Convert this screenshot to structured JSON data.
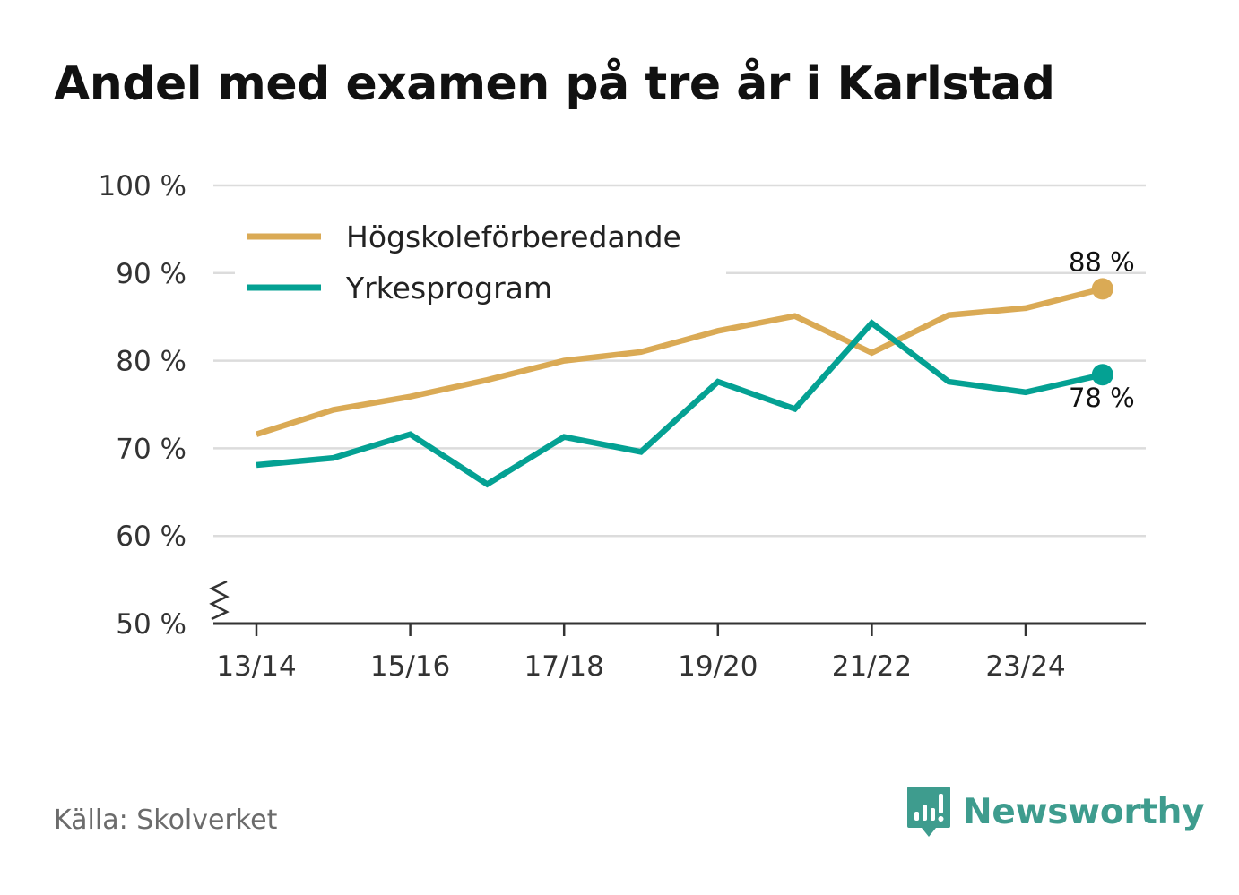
{
  "title": "Andel med examen på tre år i Karlstad",
  "source": "Källa: Skolverket",
  "brand": {
    "name": "Newsworthy",
    "icon": "newsworthy-logo-icon",
    "color": "#3e9c8e"
  },
  "colors": {
    "hogskole": "#daaa55",
    "yrkes": "#04a193",
    "grid": "#dcdcdc",
    "axis": "#333333"
  },
  "chart_data": {
    "type": "line",
    "title": "Andel med examen på tre år i Karlstad",
    "xlabel": "",
    "ylabel": "",
    "x": [
      "13/14",
      "14/15",
      "15/16",
      "16/17",
      "17/18",
      "18/19",
      "19/20",
      "20/21",
      "21/22",
      "22/23",
      "23/24",
      "24/25"
    ],
    "x_tick_labels": [
      "13/14",
      "15/16",
      "17/18",
      "19/20",
      "21/22",
      "23/24"
    ],
    "y_ticks": [
      50,
      60,
      70,
      80,
      90,
      100
    ],
    "y_tick_labels": [
      "50 %",
      "60 %",
      "70 %",
      "80 %",
      "90 %",
      "100 %"
    ],
    "ylim": [
      50,
      100
    ],
    "y_axis_break": true,
    "grid": true,
    "legend_position": "top-left",
    "series": [
      {
        "name": "Högskoleförberedande",
        "color_key": "hogskole",
        "values": [
          71.6,
          74.4,
          75.9,
          77.8,
          80.0,
          81.0,
          83.4,
          85.1,
          80.9,
          85.2,
          86.0,
          88.2
        ],
        "end_label": "88 %"
      },
      {
        "name": "Yrkesprogram",
        "color_key": "yrkes",
        "values": [
          68.1,
          68.9,
          71.6,
          65.9,
          71.3,
          69.6,
          77.6,
          74.5,
          84.3,
          77.6,
          76.4,
          78.4
        ],
        "end_label": "78 %"
      }
    ]
  }
}
